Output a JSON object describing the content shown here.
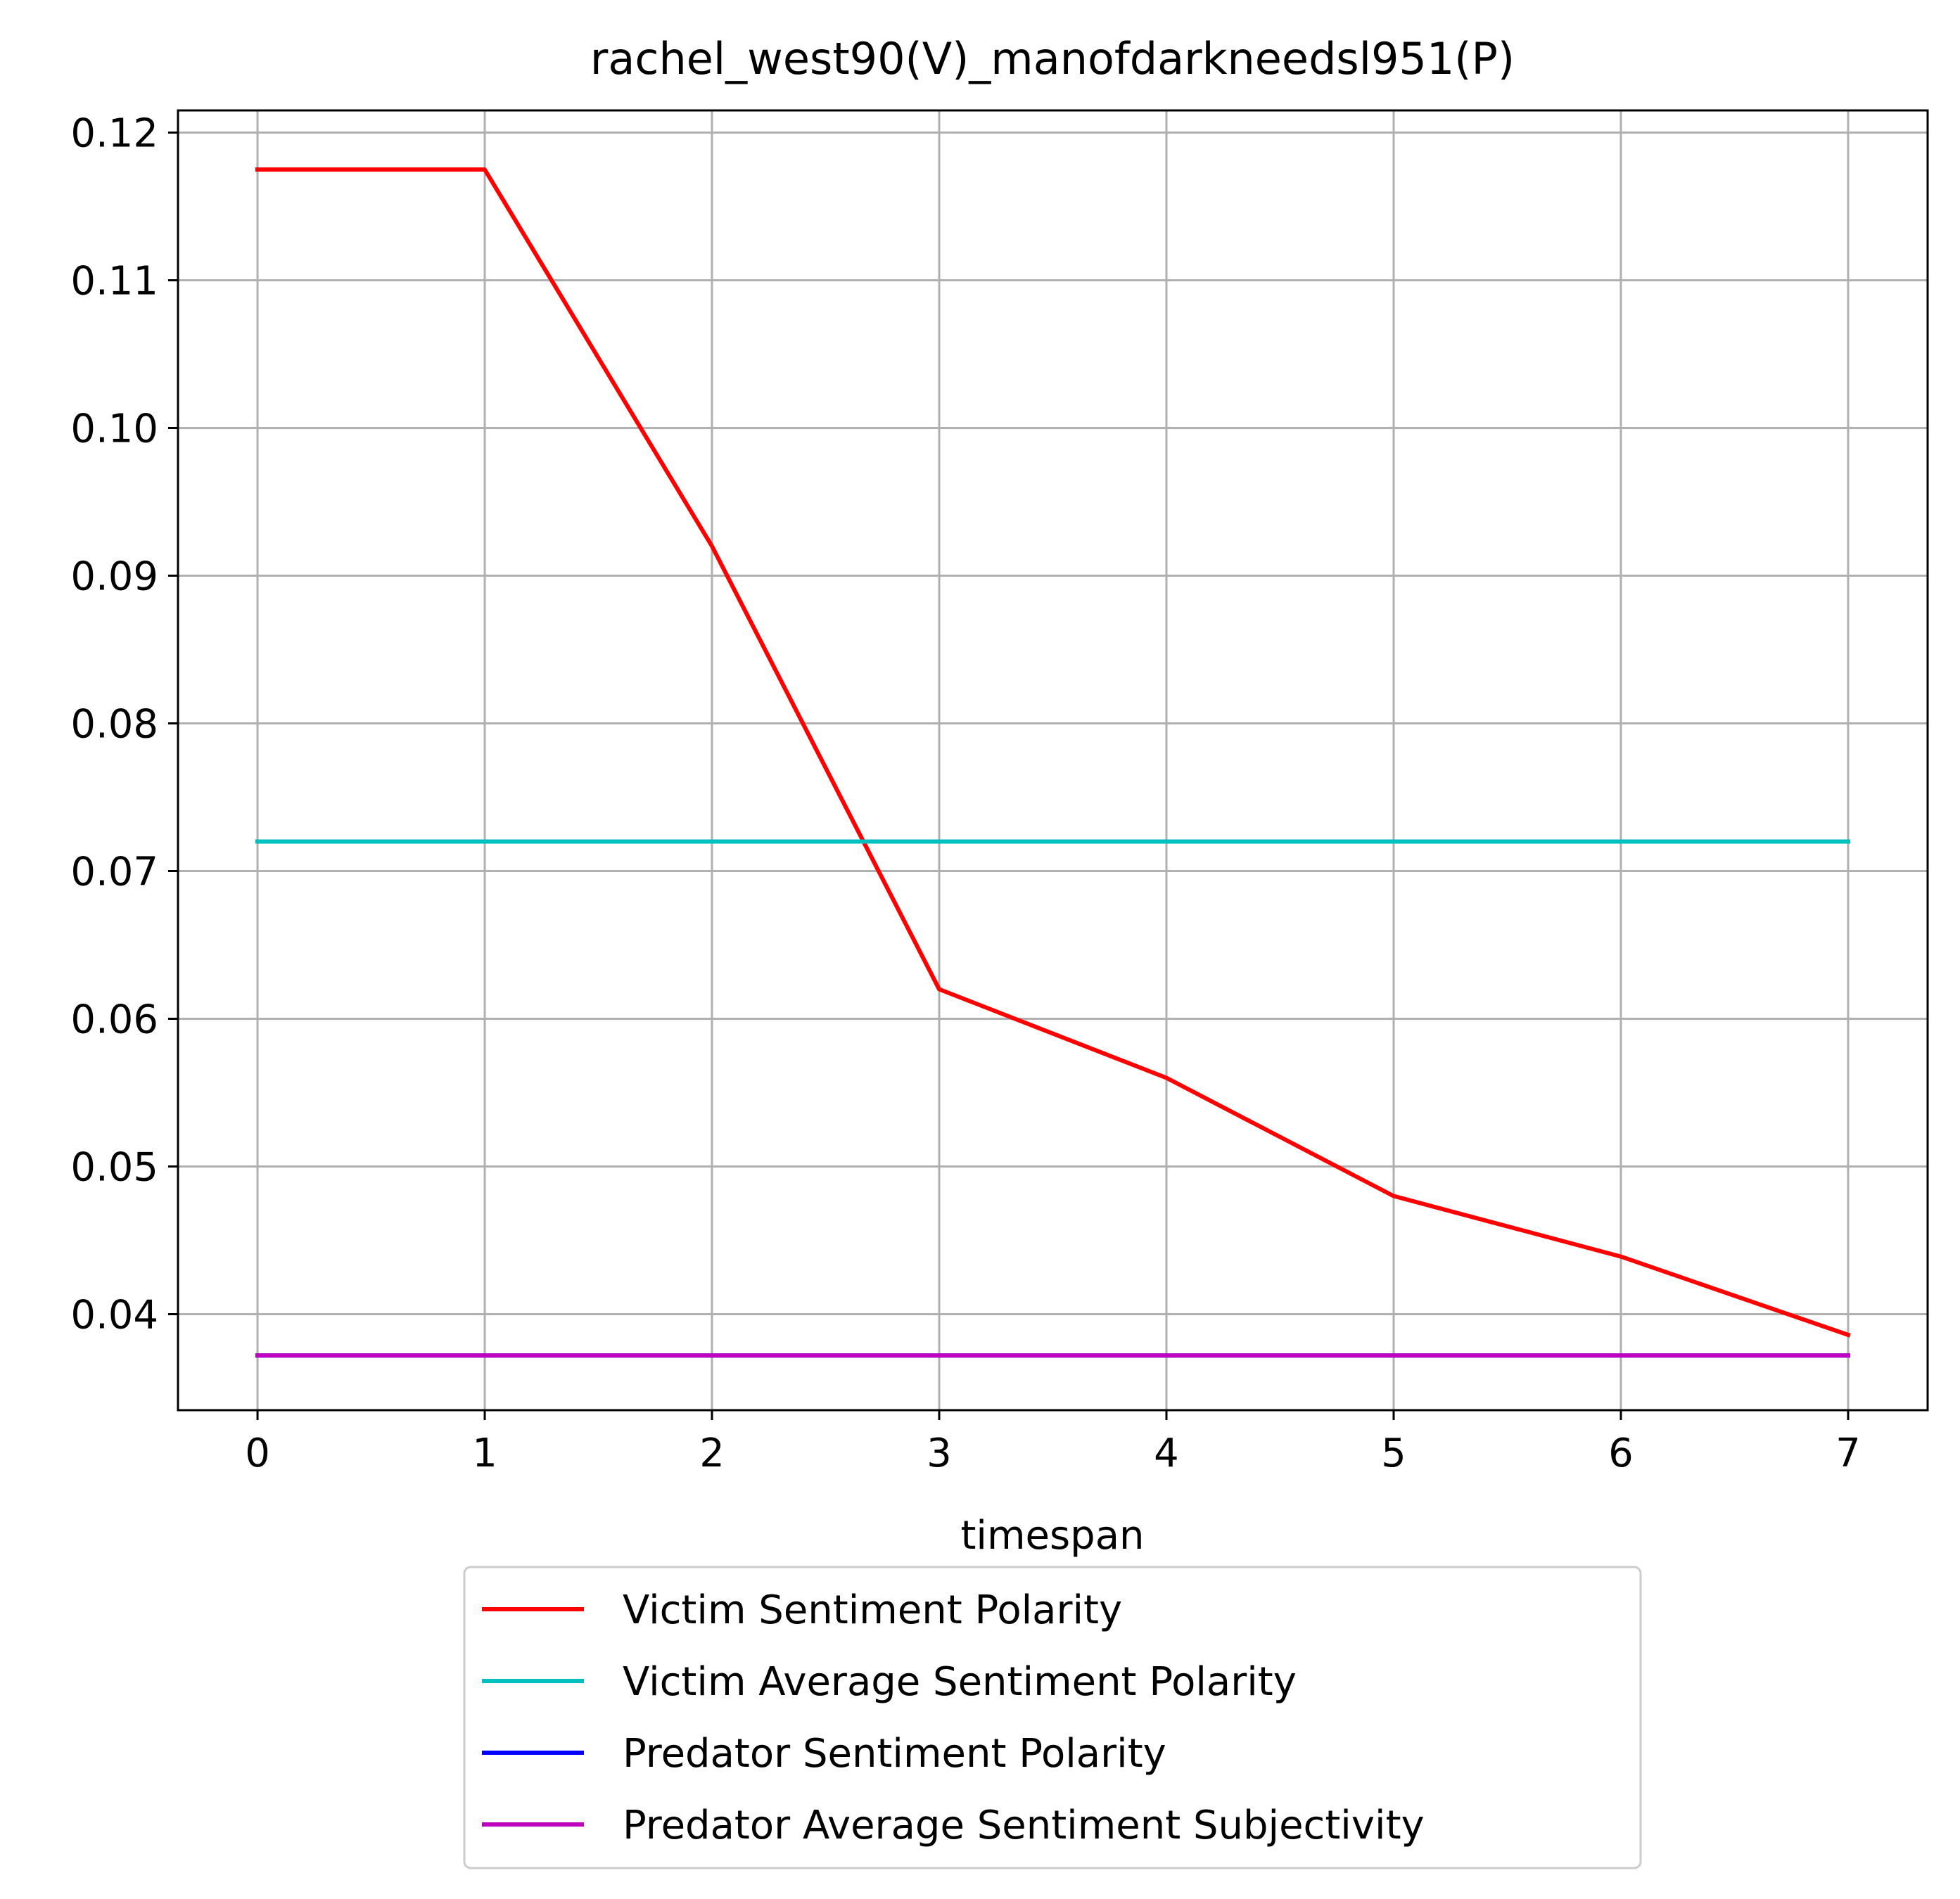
{
  "chart_data": {
    "type": "line",
    "title": "rachel_west90(V)_manofdarkneedsl951(P)",
    "xlabel": "timespan",
    "ylabel": "",
    "x": [
      0,
      1,
      2,
      3,
      4,
      5,
      6,
      7
    ],
    "xlim": [
      -0.35,
      7.35
    ],
    "ylim": [
      0.0335,
      0.1215
    ],
    "xticks": [
      "0",
      "1",
      "2",
      "3",
      "4",
      "5",
      "6",
      "7"
    ],
    "yticks": [
      "0.04",
      "0.05",
      "0.06",
      "0.07",
      "0.08",
      "0.09",
      "0.10",
      "0.11",
      "0.12"
    ],
    "grid": true,
    "legend_position": "below",
    "series": [
      {
        "name": "Victim Sentiment Polarity",
        "color": "#ff0000",
        "values": [
          0.1175,
          0.1175,
          0.092,
          0.062,
          0.056,
          0.048,
          0.0439,
          0.0386
        ]
      },
      {
        "name": "Victim Average Sentiment Polarity",
        "color": "#00bfbf",
        "values": [
          0.072,
          0.072,
          0.072,
          0.072,
          0.072,
          0.072,
          0.072,
          0.072
        ]
      },
      {
        "name": "Predator Sentiment Polarity",
        "color": "#0000ff",
        "values": [
          0.0372,
          0.0372,
          0.0372,
          0.0372,
          0.0372,
          0.0372,
          0.0372,
          0.0372
        ]
      },
      {
        "name": "Predator Average Sentiment Subjectivity",
        "color": "#bf00bf",
        "values": [
          0.0372,
          0.0372,
          0.0372,
          0.0372,
          0.0372,
          0.0372,
          0.0372,
          0.0372
        ]
      }
    ]
  }
}
